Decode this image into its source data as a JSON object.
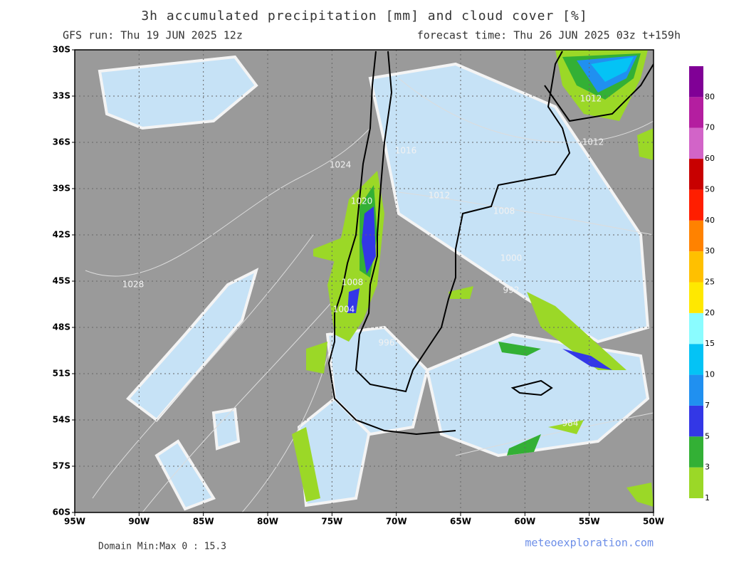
{
  "header": {
    "title": "3h accumulated precipitation [mm] and cloud cover [%]",
    "run": "GFS run: Thu 19 JUN 2025 12z",
    "forecast": "forecast time: Thu 26 JUN 2025 03z  t+159h"
  },
  "map": {
    "x_labels": [
      "95W",
      "90W",
      "85W",
      "80W",
      "75W",
      "70W",
      "65W",
      "60W",
      "55W",
      "50W"
    ],
    "y_labels": [
      "30S",
      "33S",
      "36S",
      "39S",
      "42S",
      "45S",
      "48S",
      "51S",
      "54S",
      "57S",
      "60S"
    ],
    "isobar_labels": [
      "1012",
      "1012",
      "1016",
      "1024",
      "1012",
      "1020",
      "1008",
      "1000",
      "1028",
      "1008",
      "992",
      "1004",
      "996",
      "984"
    ]
  },
  "colorbar": {
    "labels": [
      "1",
      "3",
      "5",
      "7",
      "10",
      "15",
      "20",
      "25",
      "30",
      "40",
      "50",
      "60",
      "70",
      "80"
    ],
    "colors": [
      "#9bd827",
      "#33b035",
      "#3337e6",
      "#2090f0",
      "#04c3f5",
      "#8afcff",
      "#ffe800",
      "#ffc000",
      "#ff8200",
      "#ff1e00",
      "#c80000",
      "#d264c8",
      "#b41ea0",
      "#800096"
    ]
  },
  "footer": {
    "domain": "Domain Min:Max 0 : 15.3",
    "site": "meteoexploration.com"
  }
}
